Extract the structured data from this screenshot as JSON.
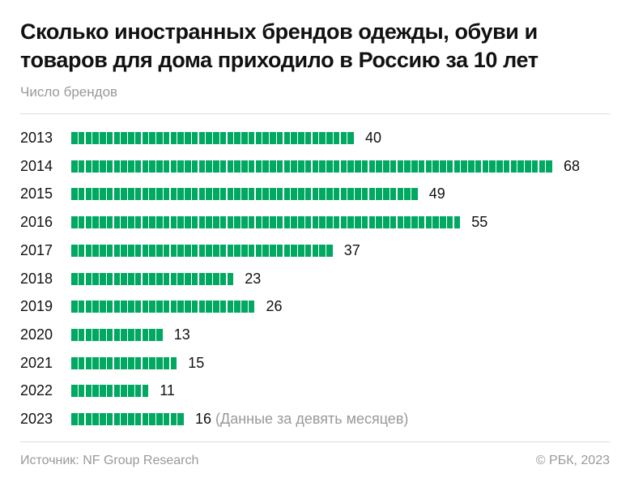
{
  "title": "Сколько иностранных брендов одежды, обуви и товаров для дома приходило в Россию за 10 лет",
  "subtitle": "Число брендов",
  "source": "Источник: NF Group Research",
  "copyright": "© РБК, 2023",
  "colors": {
    "bar": "#00a862",
    "segment_gap": "#8fd9b6"
  },
  "chart_data": {
    "type": "bar",
    "orientation": "horizontal",
    "style": "one segment per brand",
    "categories": [
      "2013",
      "2014",
      "2015",
      "2016",
      "2017",
      "2018",
      "2019",
      "2020",
      "2021",
      "2022",
      "2023"
    ],
    "values": [
      40,
      68,
      49,
      55,
      37,
      23,
      26,
      13,
      15,
      11,
      16
    ],
    "annotations": [
      {
        "category": "2023",
        "text": "(Данные за девять месяцев)"
      }
    ],
    "title": "Сколько иностранных брендов одежды, обуви и товаров для дома приходило в Россию за 10 лет",
    "ylabel": "Число брендов",
    "grid": false
  }
}
